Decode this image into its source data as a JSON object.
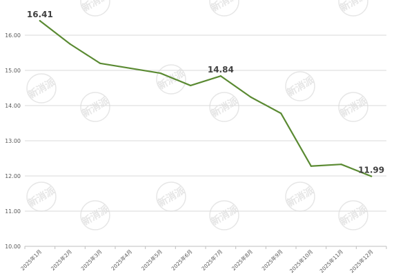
{
  "chart_data": {
    "type": "line",
    "categories": [
      "2025年1月",
      "2025年2月",
      "2025年3月",
      "2025年4月",
      "2025年5月",
      "2025年6月",
      "2025年7月",
      "2025年8月",
      "2025年9月",
      "2025年10月",
      "2025年11月",
      "2025年12月"
    ],
    "series": [
      {
        "values": [
          16.41,
          15.75,
          15.2,
          15.06,
          14.92,
          14.57,
          14.84,
          14.24,
          13.78,
          12.28,
          12.33,
          11.99
        ],
        "color": "#5a8a32",
        "data_labels": [
          {
            "index": 0,
            "text": "16.41"
          },
          {
            "index": 6,
            "text": "14.84"
          },
          {
            "index": 11,
            "text": "11.99"
          }
        ]
      }
    ],
    "y_ticks": [
      "10.00",
      "11.00",
      "12.00",
      "13.00",
      "14.00",
      "15.00",
      "16.00"
    ],
    "ylim": [
      10,
      17
    ],
    "grid": true,
    "watermark_text": "新消派",
    "colors": {
      "line": "#5a8a32",
      "grid": "#d9d9d9",
      "axis": "#bfbfbf",
      "tick_label": "#595959",
      "data_label": "#404040",
      "watermark": "#e6e6e6"
    }
  }
}
